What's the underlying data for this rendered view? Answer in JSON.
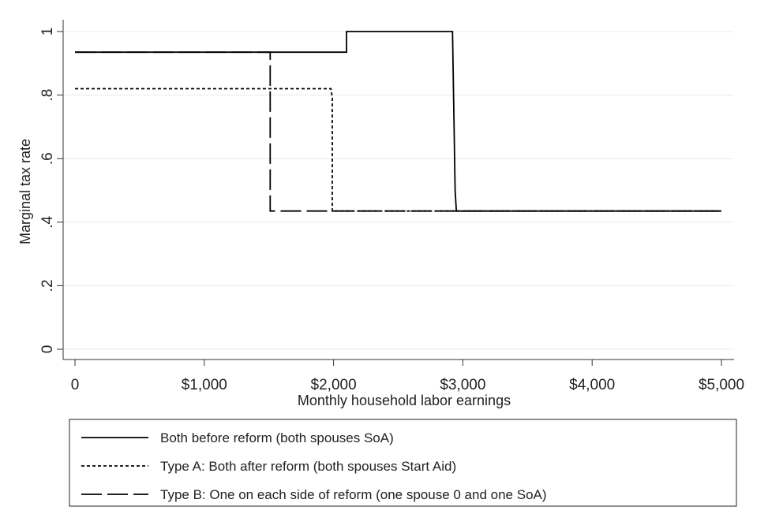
{
  "chart_data": {
    "type": "line",
    "xlabel": "Monthly household labor earnings",
    "ylabel": "Marginal tax rate",
    "xlim": [
      0,
      5000
    ],
    "ylim": [
      0,
      1
    ],
    "x_ticks": [
      {
        "value": 0,
        "label": "0"
      },
      {
        "value": 1000,
        "label": "$1,000"
      },
      {
        "value": 2000,
        "label": "$2,000"
      },
      {
        "value": 3000,
        "label": "$3,000"
      },
      {
        "value": 4000,
        "label": "$4,000"
      },
      {
        "value": 5000,
        "label": "$5,000"
      }
    ],
    "y_ticks": [
      {
        "value": 0,
        "label": "0"
      },
      {
        "value": 0.2,
        "label": ".2"
      },
      {
        "value": 0.4,
        "label": ".4"
      },
      {
        "value": 0.6,
        "label": ".6"
      },
      {
        "value": 0.8,
        "label": ".8"
      },
      {
        "value": 1,
        "label": "1"
      }
    ],
    "grid": "horizontal",
    "legend_position": "bottom",
    "series": [
      {
        "name": "Both before reform (both spouses SoA)",
        "style": "solid",
        "color": "#000000",
        "x": [
          0,
          2100,
          2100,
          2920,
          2940,
          2950,
          5000
        ],
        "y": [
          0.935,
          0.935,
          1.0,
          1.0,
          0.5,
          0.435,
          0.435
        ]
      },
      {
        "name": "Type A: Both after reform (both spouses Start Aid)",
        "style": "dotted",
        "color": "#000000",
        "x": [
          0,
          1980,
          1990,
          1990,
          5000
        ],
        "y": [
          0.82,
          0.82,
          0.79,
          0.435,
          0.435
        ]
      },
      {
        "name": "Type B: One on each side of reform (one spouse 0 and one SoA)",
        "style": "dashed",
        "color": "#000000",
        "x": [
          0,
          1510,
          1510,
          5000
        ],
        "y": [
          0.935,
          0.935,
          0.435,
          0.435
        ]
      }
    ]
  }
}
